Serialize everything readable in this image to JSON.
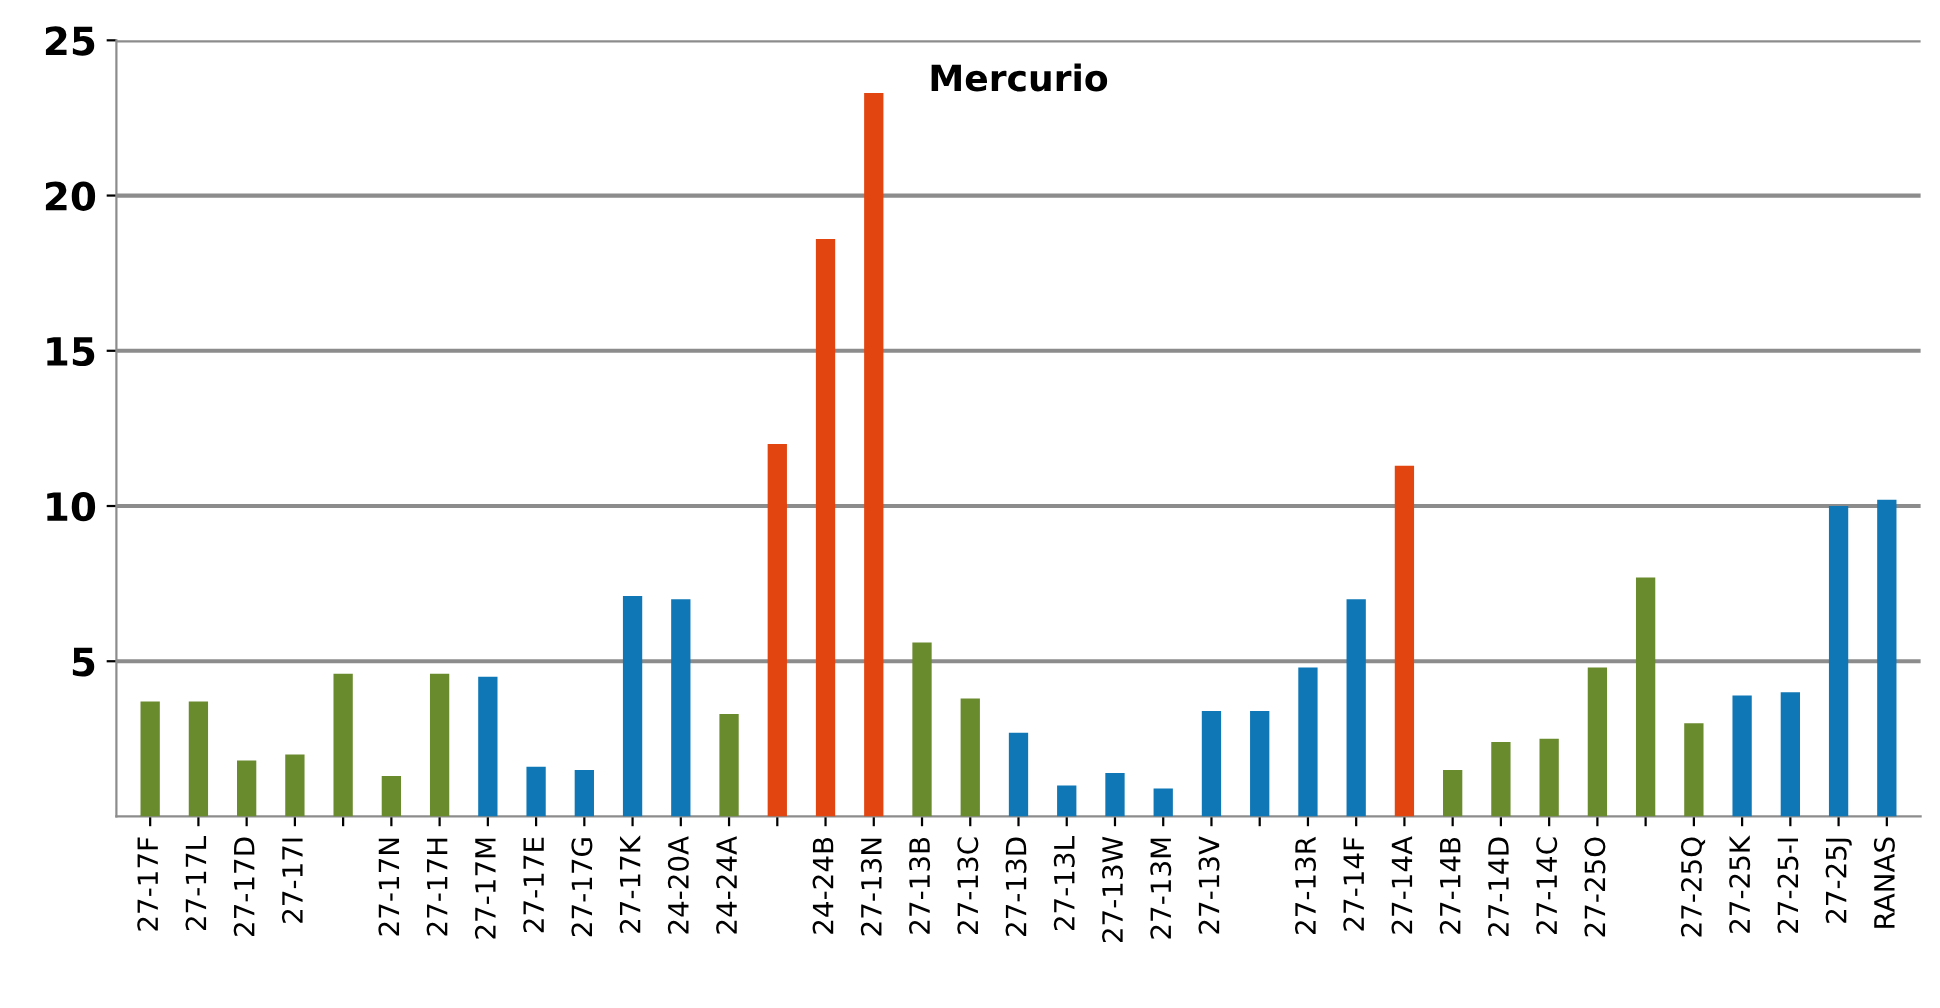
{
  "chart_data": {
    "type": "bar",
    "title": "Mercurio",
    "categories": [
      "27-17F",
      "27-17L",
      "27-17D",
      "27-17I",
      null,
      "27-17N",
      "27-17H",
      "27-17M",
      "27-17E",
      "27-17G",
      "27-17K",
      "24-20A",
      "24-24A",
      null,
      "24-24B",
      "27-13N",
      "27-13B",
      "27-13C",
      "27-13D",
      "27-13L",
      "27-13W",
      "27-13M",
      "27-13V",
      null,
      "27-13R",
      "27-14F",
      "27-14A",
      "27-14B",
      "27-14D",
      "27-14C",
      "27-25O",
      null,
      "27-25Q",
      "27-25K",
      "27-25-I",
      "27-25J",
      "RANAS"
    ],
    "values": [
      3.7,
      3.7,
      1.8,
      2,
      4.6,
      1.3,
      4.6,
      4.5,
      1.6,
      1.5,
      7.1,
      7,
      3.3,
      12,
      18.6,
      23.3,
      5.6,
      3.8,
      2.7,
      1,
      1.4,
      0.9,
      3.4,
      3.4,
      4.8,
      7,
      11.3,
      1.5,
      2.4,
      2.5,
      4.8,
      7.7,
      3,
      3.9,
      4,
      10,
      10.2
    ],
    "colors": [
      "#6a8a2e",
      "#6a8a2e",
      "#6a8a2e",
      "#6a8a2e",
      "#6a8a2e",
      "#6a8a2e",
      "#6a8a2e",
      "#0f77b5",
      "#0f77b5",
      "#0f77b5",
      "#0f77b5",
      "#0f77b5",
      "#6a8a2e",
      "#e2450f",
      "#e2450f",
      "#e2450f",
      "#6a8a2e",
      "#6a8a2e",
      "#0f77b5",
      "#0f77b5",
      "#0f77b5",
      "#0f77b5",
      "#0f77b5",
      "#0f77b5",
      "#0f77b5",
      "#0f77b5",
      "#e2450f",
      "#6a8a2e",
      "#6a8a2e",
      "#6a8a2e",
      "#6a8a2e",
      "#6a8a2e",
      "#6a8a2e",
      "#0f77b5",
      "#0f77b5",
      "#0f77b5",
      "#0f77b5"
    ],
    "ylim": [
      0,
      25
    ],
    "yticks": [
      5,
      10,
      15,
      20,
      25
    ],
    "grid": "y"
  }
}
